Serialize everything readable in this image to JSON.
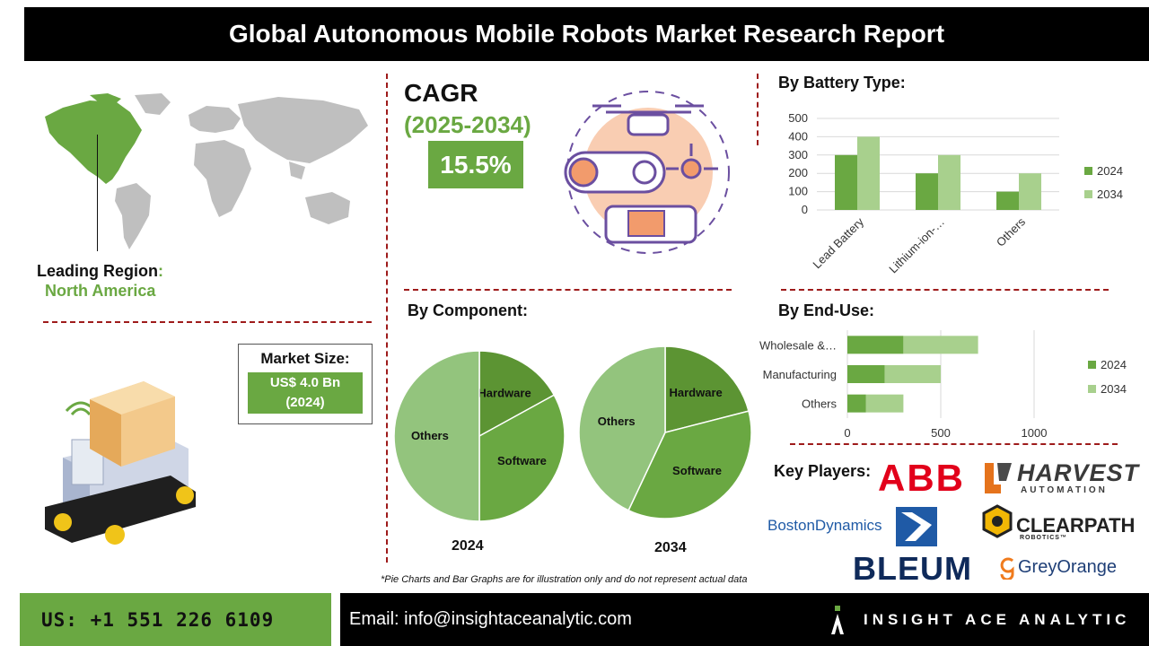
{
  "header": {
    "title": "Global Autonomous Mobile Robots Market Research Report"
  },
  "region": {
    "label": "Leading Region",
    "colon": ":",
    "value": "North America"
  },
  "market_size": {
    "label": "Market Size:",
    "value": "US$ 4.0 Bn",
    "year": "(2024)"
  },
  "cagr": {
    "label": "CAGR",
    "period": "(2025-2034)",
    "value": "15.5%"
  },
  "battery_section": {
    "title": "By Battery Type:"
  },
  "component_section": {
    "title": "By Component:"
  },
  "enduse_section": {
    "title": "By End-Use:"
  },
  "key_players": {
    "title": "Key Players:",
    "logos": [
      "ABB",
      "HARVEST",
      "AUTOMATION",
      "BostonDynamics",
      "CLEARPATH",
      "ROBOTICS™",
      "BLEUM",
      "GreyOrange"
    ]
  },
  "disclaimer": "*Pie Charts and Bar Graphs are for illustration only and do not represent actual data",
  "footer": {
    "phone": "US: +1 551 226 6109",
    "email": "Email: info@insightaceanalytic.com",
    "brand": "INSIGHT ACE ANALYTIC"
  },
  "colors": {
    "green_2024": "#6aa842",
    "green_2034": "#a8d08d",
    "pie_dark": "#5c9433",
    "pie_mid": "#6aa842",
    "pie_light": "#93c47d",
    "dash": "#9e1b1b"
  },
  "chart_data": [
    {
      "type": "bar",
      "categories": [
        "Lead Battery",
        "Lithium-ion-…",
        "Others"
      ],
      "series": [
        {
          "name": "2024",
          "values": [
            300,
            200,
            100
          ]
        },
        {
          "name": "2034",
          "values": [
            400,
            300,
            200
          ]
        }
      ],
      "ylim": [
        0,
        500
      ],
      "yticks": [
        "0",
        "100",
        "200",
        "300",
        "400",
        "500"
      ],
      "grid": true,
      "legend": "right"
    },
    {
      "type": "bar",
      "orientation": "horizontal",
      "stacked": true,
      "categories": [
        "Wholesale &…",
        "Manufacturing",
        "Others"
      ],
      "series": [
        {
          "name": "2024",
          "values": [
            300,
            200,
            100
          ]
        },
        {
          "name": "2034",
          "values": [
            400,
            300,
            200
          ]
        }
      ],
      "xlim": [
        0,
        1000
      ],
      "xticks": [
        "0",
        "500",
        "1000"
      ],
      "grid": true,
      "legend": "right"
    },
    {
      "type": "pie",
      "year": "2024",
      "labels": [
        "Hardware",
        "Software",
        "Others"
      ],
      "values": [
        17,
        33,
        50
      ]
    },
    {
      "type": "pie",
      "year": "2034",
      "labels": [
        "Hardware",
        "Software",
        "Others"
      ],
      "values": [
        21,
        36,
        43
      ]
    }
  ]
}
